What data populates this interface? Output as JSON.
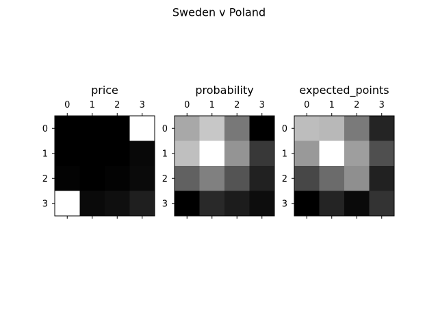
{
  "figure": {
    "suptitle": "Sweden v Poland"
  },
  "chart_data": [
    {
      "type": "heatmap",
      "title": "price",
      "colormap": "gray",
      "x_ticks": [
        "0",
        "1",
        "2",
        "3"
      ],
      "y_ticks": [
        "0",
        "1",
        "2",
        "3"
      ],
      "values": [
        [
          0.0,
          0.0,
          0.0,
          1.0
        ],
        [
          0.0,
          0.0,
          0.0,
          0.03
        ],
        [
          0.01,
          0.0,
          0.01,
          0.04
        ],
        [
          1.0,
          0.04,
          0.06,
          0.12
        ]
      ]
    },
    {
      "type": "heatmap",
      "title": "probability",
      "colormap": "gray",
      "x_ticks": [
        "0",
        "1",
        "2",
        "3"
      ],
      "y_ticks": [
        "0",
        "1",
        "2",
        "3"
      ],
      "values": [
        [
          0.66,
          0.78,
          0.47,
          0.0
        ],
        [
          0.75,
          1.0,
          0.58,
          0.22
        ],
        [
          0.38,
          0.5,
          0.33,
          0.13
        ],
        [
          0.0,
          0.16,
          0.11,
          0.05
        ]
      ]
    },
    {
      "type": "heatmap",
      "title": "expected_points",
      "colormap": "gray",
      "x_ticks": [
        "0",
        "1",
        "2",
        "3"
      ],
      "y_ticks": [
        "0",
        "1",
        "2",
        "3"
      ],
      "values": [
        [
          0.74,
          0.72,
          0.48,
          0.14
        ],
        [
          0.6,
          1.0,
          0.62,
          0.31
        ],
        [
          0.28,
          0.42,
          0.56,
          0.13
        ],
        [
          0.0,
          0.14,
          0.04,
          0.2
        ]
      ]
    }
  ]
}
